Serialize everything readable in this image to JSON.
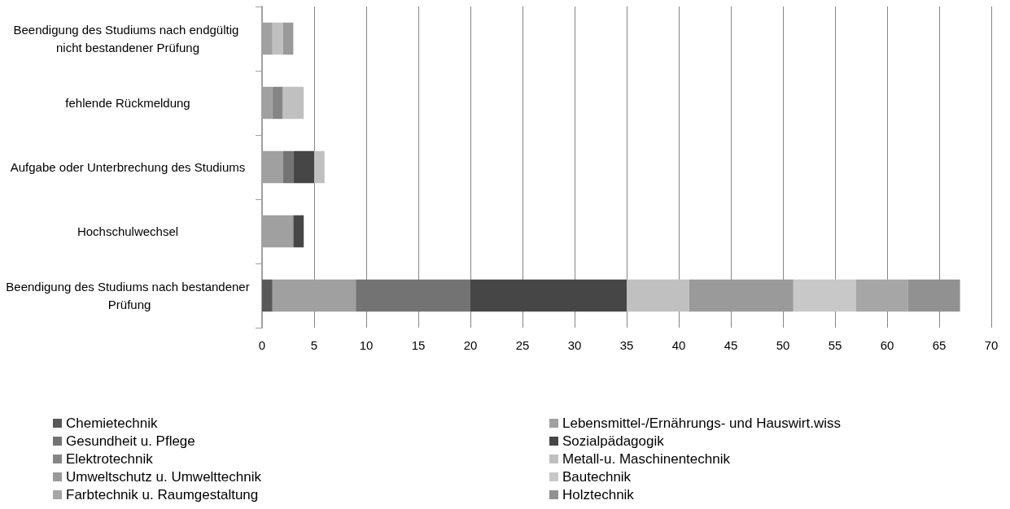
{
  "chart_data": {
    "type": "bar",
    "orientation": "horizontal",
    "stacked": true,
    "categories": [
      "Beendigung des Studiums nach endgültig nicht bestandener Prüfung",
      "fehlende Rückmeldung",
      "Aufgabe oder Unterbrechung des Studiums",
      "Hochschulwechsel",
      "Beendigung des Studiums nach bestandener Prüfung"
    ],
    "series": [
      {
        "name": "Chemietechnik",
        "color": "#595959",
        "values": [
          0,
          0,
          0,
          0,
          1
        ]
      },
      {
        "name": "Lebensmittel-/Ernährungs- und Hauswirt.wiss",
        "color": "#a0a0a0",
        "values": [
          1,
          1,
          2,
          3,
          8
        ]
      },
      {
        "name": "Gesundheit u. Pflege",
        "color": "#737373",
        "values": [
          0,
          0,
          1,
          0,
          11
        ]
      },
      {
        "name": "Sozialpädagogik",
        "color": "#464646",
        "values": [
          0,
          0,
          2,
          1,
          15
        ]
      },
      {
        "name": "Elektrotechnik",
        "color": "#868686",
        "values": [
          0,
          1,
          0,
          0,
          0
        ]
      },
      {
        "name": "Metall-u. Maschinentechnik",
        "color": "#c0c0c0",
        "values": [
          1,
          2,
          1,
          0,
          6
        ]
      },
      {
        "name": "Umweltschutz u. Umwelttechnik",
        "color": "#9a9a9a",
        "values": [
          1,
          0,
          0,
          0,
          10
        ]
      },
      {
        "name": "Bautechnik",
        "color": "#c8c8c8",
        "values": [
          0,
          0,
          0,
          0,
          6
        ]
      },
      {
        "name": "Farbtechnik u. Raumgestaltung",
        "color": "#a6a6a6",
        "values": [
          0,
          0,
          0,
          0,
          5
        ]
      },
      {
        "name": "Holztechnik",
        "color": "#919191",
        "values": [
          0,
          0,
          0,
          0,
          5
        ]
      }
    ],
    "xlim": [
      0,
      70
    ],
    "xticks": [
      0,
      5,
      10,
      15,
      20,
      25,
      30,
      35,
      40,
      45,
      50,
      55,
      60,
      65,
      70
    ],
    "grid": "x",
    "legend": "bottom"
  }
}
